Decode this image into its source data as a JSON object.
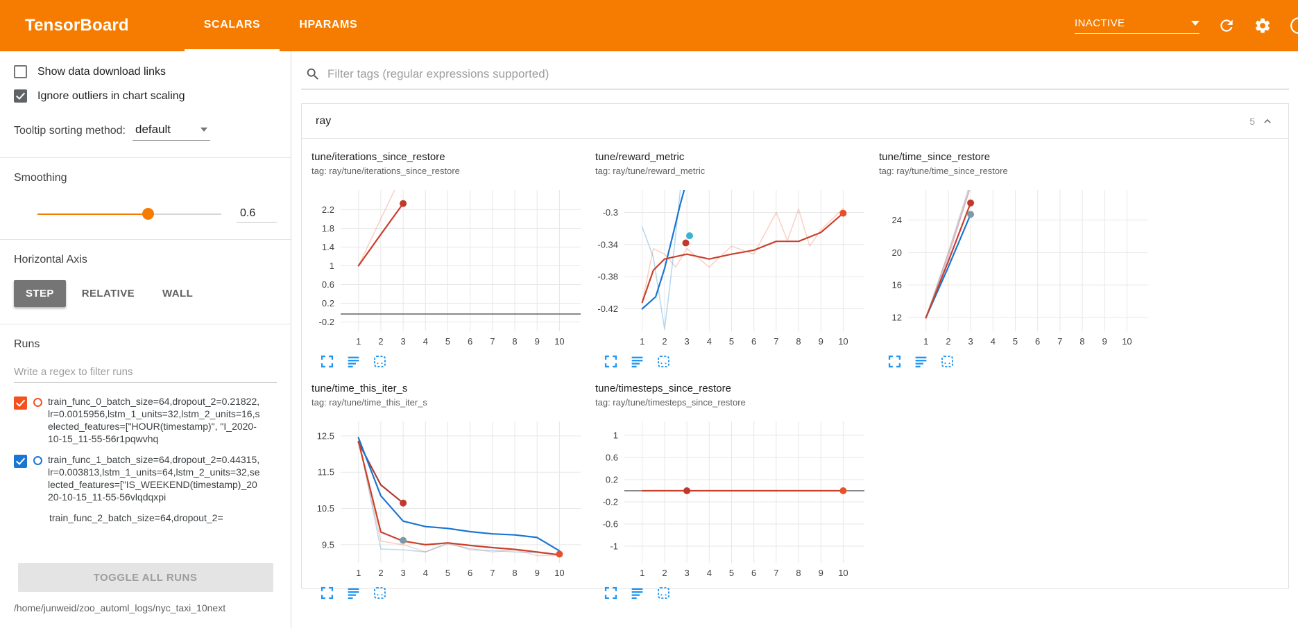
{
  "header": {
    "title": "TensorBoard",
    "tabs": [
      {
        "label": "SCALARS",
        "active": true
      },
      {
        "label": "HPARAMS",
        "active": false
      }
    ],
    "status_dropdown": {
      "value": "INACTIVE"
    }
  },
  "sidebar": {
    "settings": [
      {
        "label": "Show data download links",
        "checked": false
      },
      {
        "label": "Ignore outliers in chart scaling",
        "checked": true
      }
    ],
    "tooltip_sorting": {
      "label": "Tooltip sorting method:",
      "value": "default"
    },
    "smoothing": {
      "label": "Smoothing",
      "value": "0.6",
      "percent": 60
    },
    "horizontal_axis": {
      "label": "Horizontal Axis",
      "options": [
        {
          "label": "STEP",
          "selected": true
        },
        {
          "label": "RELATIVE",
          "selected": false
        },
        {
          "label": "WALL",
          "selected": false
        }
      ]
    },
    "runs": {
      "label": "Runs",
      "filter_placeholder": "Write a regex to filter runs",
      "items": [
        {
          "label": "train_func_0_batch_size=64,dropout_2=0.21822,lr=0.0015956,lstm_1_units=32,lstm_2_units=16,selected_features=[\"HOUR(timestamp)\", \"I_2020-10-15_11-55-56r1pqwvhq",
          "checked": true,
          "color": "#f4511e"
        },
        {
          "label": "train_func_1_batch_size=64,dropout_2=0.44315,lr=0.003813,lstm_1_units=64,lstm_2_units=32,selected_features=[\"IS_WEEKEND(timestamp)_2020-10-15_11-55-56vlqdqxpi",
          "checked": true,
          "color": "#1976d2"
        },
        {
          "label": "train_func_2_batch_size=64,dropout_2=",
          "checked": null,
          "color": null
        }
      ],
      "toggle_all_label": "TOGGLE ALL RUNS",
      "log_path": "/home/junweid/zoo_automl_logs/nyc_taxi_10next"
    }
  },
  "main": {
    "filter_placeholder": "Filter tags (regular expressions supported)",
    "section": {
      "name": "ray",
      "count": "5"
    },
    "chart_data": [
      {
        "type": "line",
        "title": "tune/iterations_since_restore",
        "tag": "tag: ray/tune/iterations_since_restore",
        "xlim": [
          0.2,
          10.95
        ],
        "ylim": [
          -0.4,
          2.62
        ],
        "xticks": [
          1,
          2,
          3,
          4,
          5,
          6,
          7,
          8,
          9,
          10
        ],
        "yticks": [
          -0.2,
          0.2,
          0.6,
          1,
          1.4,
          1.8,
          2.2
        ],
        "series": [
          {
            "name": "train_func_0_raw",
            "color": "#e8502c",
            "opacity": 0.25,
            "width": 1.6,
            "points": [
              [
                1,
                1
              ],
              [
                2,
                2
              ],
              [
                3,
                3
              ]
            ]
          },
          {
            "name": "train_func_0",
            "color": "#c9402c",
            "opacity": 1,
            "width": 2.2,
            "points": [
              [
                1,
                1
              ],
              [
                2,
                1.67
              ],
              [
                3,
                2.33
              ]
            ]
          },
          {
            "name": "constant_run",
            "color": "#5f6368",
            "opacity": 1,
            "width": 1.6,
            "points": [
              [
                0.2,
                -0.03
              ],
              [
                10.95,
                -0.03
              ]
            ]
          }
        ],
        "dots": [
          {
            "x": 3,
            "y": 2.33,
            "color": "#c0392b"
          }
        ]
      },
      {
        "type": "line",
        "title": "tune/reward_metric",
        "tag": "tag: ray/tune/reward_metric",
        "xlim": [
          0.2,
          10.95
        ],
        "ylim": [
          -0.448,
          -0.272
        ],
        "xticks": [
          1,
          2,
          3,
          4,
          5,
          6,
          7,
          8,
          9,
          10
        ],
        "yticks": [
          -0.42,
          -0.38,
          -0.34,
          -0.3
        ],
        "series": [
          {
            "name": "train_func_1_raw",
            "color": "#90c5e8",
            "opacity": 0.65,
            "width": 1.6,
            "points": [
              [
                1,
                -0.318
              ],
              [
                1.5,
                -0.356
              ],
              [
                2,
                -0.445
              ],
              [
                2.2,
                -0.4
              ],
              [
                2.45,
                -0.34
              ],
              [
                2.75,
                -0.26
              ]
            ]
          },
          {
            "name": "train_func_0_raw",
            "color": "#e8502c",
            "opacity": 0.25,
            "width": 1.6,
            "points": [
              [
                1,
                -0.412
              ],
              [
                1.5,
                -0.345
              ],
              [
                2,
                -0.352
              ],
              [
                2.5,
                -0.368
              ],
              [
                3,
                -0.345
              ],
              [
                4,
                -0.368
              ],
              [
                5,
                -0.342
              ],
              [
                6,
                -0.352
              ],
              [
                7,
                -0.3
              ],
              [
                7.5,
                -0.335
              ],
              [
                8,
                -0.296
              ],
              [
                8.5,
                -0.342
              ],
              [
                9,
                -0.322
              ],
              [
                10,
                -0.295
              ]
            ]
          },
          {
            "name": "train_func_1",
            "color": "#1976d2",
            "opacity": 1,
            "width": 2.2,
            "points": [
              [
                1,
                -0.42
              ],
              [
                1.6,
                -0.405
              ],
              [
                2,
                -0.37
              ],
              [
                2.4,
                -0.325
              ],
              [
                2.7,
                -0.29
              ],
              [
                3,
                -0.26
              ]
            ]
          },
          {
            "name": "train_func_0",
            "color": "#c9402c",
            "opacity": 1,
            "width": 2.2,
            "points": [
              [
                1,
                -0.412
              ],
              [
                1.5,
                -0.372
              ],
              [
                2,
                -0.358
              ],
              [
                3,
                -0.352
              ],
              [
                4,
                -0.358
              ],
              [
                5,
                -0.352
              ],
              [
                6,
                -0.347
              ],
              [
                7,
                -0.336
              ],
              [
                8,
                -0.336
              ],
              [
                9,
                -0.325
              ],
              [
                10,
                -0.301
              ]
            ]
          }
        ],
        "dots": [
          {
            "x": 2.95,
            "y": -0.338,
            "color": "#c0392b"
          },
          {
            "x": 3.12,
            "y": -0.329,
            "color": "#3bb3d0"
          },
          {
            "x": 10,
            "y": -0.301,
            "color": "#e8502c"
          }
        ]
      },
      {
        "type": "line",
        "title": "tune/time_since_restore",
        "tag": "tag: ray/tune/time_since_restore",
        "xlim": [
          0.2,
          10.95
        ],
        "ylim": [
          10.3,
          27.7
        ],
        "xticks": [
          1,
          2,
          3,
          4,
          5,
          6,
          7,
          8,
          9,
          10
        ],
        "yticks": [
          12,
          16,
          20,
          24
        ],
        "series": [
          {
            "name": "raw_a",
            "color": "#9aa7b0",
            "opacity": 0.55,
            "width": 1.6,
            "points": [
              [
                1,
                12
              ],
              [
                2,
                20
              ],
              [
                3,
                28.6
              ]
            ]
          },
          {
            "name": "raw_b",
            "color": "#b39ddb",
            "opacity": 0.5,
            "width": 1.6,
            "points": [
              [
                1,
                11.9
              ],
              [
                2,
                19.4
              ],
              [
                3,
                28.2
              ]
            ]
          },
          {
            "name": "raw_c",
            "color": "#e8502c",
            "opacity": 0.25,
            "width": 1.6,
            "points": [
              [
                1,
                11.8
              ],
              [
                2,
                19.8
              ],
              [
                3,
                28
              ]
            ]
          },
          {
            "name": "train_func_1",
            "color": "#1976d2",
            "opacity": 1,
            "width": 2.2,
            "points": [
              [
                1,
                12
              ],
              [
                2,
                18.2
              ],
              [
                3,
                24.7
              ]
            ]
          },
          {
            "name": "train_func_0",
            "color": "#c9402c",
            "opacity": 1,
            "width": 2.2,
            "points": [
              [
                1,
                12
              ],
              [
                2,
                18.9
              ],
              [
                3,
                26.1
              ]
            ]
          }
        ],
        "dots": [
          {
            "x": 3,
            "y": 26.1,
            "color": "#c0392b"
          },
          {
            "x": 3,
            "y": 24.7,
            "color": "#7d9aa8"
          }
        ]
      },
      {
        "type": "line",
        "title": "tune/time_this_iter_s",
        "tag": "tag: ray/tune/time_this_iter_s",
        "xlim": [
          0.2,
          10.95
        ],
        "ylim": [
          9.0,
          12.9
        ],
        "xticks": [
          1,
          2,
          3,
          4,
          5,
          6,
          7,
          8,
          9,
          10
        ],
        "yticks": [
          9.5,
          10.5,
          11.5,
          12.5
        ],
        "series": [
          {
            "name": "train_func_1_raw",
            "color": "#90c5e8",
            "opacity": 0.6,
            "width": 1.6,
            "points": [
              [
                1,
                12.45
              ],
              [
                2,
                9.38
              ],
              [
                3,
                9.36
              ],
              [
                4,
                9.3
              ],
              [
                5,
                9.55
              ],
              [
                6,
                9.36
              ],
              [
                7,
                9.34
              ],
              [
                8,
                9.3
              ],
              [
                9,
                9.28
              ],
              [
                10,
                9.22
              ]
            ]
          },
          {
            "name": "train_func_0_raw",
            "color": "#e8502c",
            "opacity": 0.25,
            "width": 1.6,
            "points": [
              [
                1,
                12.35
              ],
              [
                2,
                9.6
              ],
              [
                3,
                9.5
              ],
              [
                4,
                9.3
              ],
              [
                5,
                9.52
              ],
              [
                6,
                9.4
              ],
              [
                7,
                9.3
              ],
              [
                8,
                9.36
              ],
              [
                9,
                9.2
              ],
              [
                10,
                9.2
              ]
            ]
          },
          {
            "name": "train_func_2",
            "color": "#b03a2e",
            "opacity": 1,
            "width": 2.2,
            "points": [
              [
                1,
                12.32
              ],
              [
                2,
                11.15
              ],
              [
                3,
                10.65
              ]
            ]
          },
          {
            "name": "train_func_1",
            "color": "#1976d2",
            "opacity": 1,
            "width": 2.2,
            "points": [
              [
                1,
                12.45
              ],
              [
                2,
                10.85
              ],
              [
                3,
                10.15
              ],
              [
                4,
                10.0
              ],
              [
                5,
                9.95
              ],
              [
                6,
                9.86
              ],
              [
                7,
                9.8
              ],
              [
                8,
                9.77
              ],
              [
                9,
                9.7
              ],
              [
                10,
                9.33
              ]
            ]
          },
          {
            "name": "train_func_0",
            "color": "#c9402c",
            "opacity": 1,
            "width": 2.2,
            "points": [
              [
                1,
                12.35
              ],
              [
                2,
                9.85
              ],
              [
                3,
                9.6
              ],
              [
                4,
                9.5
              ],
              [
                5,
                9.55
              ],
              [
                6,
                9.48
              ],
              [
                7,
                9.42
              ],
              [
                8,
                9.37
              ],
              [
                9,
                9.3
              ],
              [
                10,
                9.22
              ]
            ]
          }
        ],
        "dots": [
          {
            "x": 3,
            "y": 10.65,
            "color": "#c0392b"
          },
          {
            "x": 3,
            "y": 9.62,
            "color": "#7d9aa8"
          },
          {
            "x": 10,
            "y": 9.24,
            "color": "#e8502c"
          }
        ]
      },
      {
        "type": "line",
        "title": "tune/timesteps_since_restore",
        "tag": "tag: ray/tune/timesteps_since_restore",
        "xlim": [
          0.2,
          10.95
        ],
        "ylim": [
          -1.3,
          1.25
        ],
        "xticks": [
          1,
          2,
          3,
          4,
          5,
          6,
          7,
          8,
          9,
          10
        ],
        "yticks": [
          -1,
          -0.6,
          -0.2,
          0.2,
          0.6,
          1
        ],
        "series": [
          {
            "name": "constant_gray",
            "color": "#5f6368",
            "opacity": 1,
            "width": 1.6,
            "points": [
              [
                0.2,
                0
              ],
              [
                10.95,
                0
              ]
            ]
          },
          {
            "name": "train_func_0",
            "color": "#c9402c",
            "opacity": 1,
            "width": 2.2,
            "points": [
              [
                1,
                0
              ],
              [
                10,
                0
              ]
            ]
          }
        ],
        "dots": [
          {
            "x": 3,
            "y": 0,
            "color": "#c0392b"
          },
          {
            "x": 10,
            "y": 0,
            "color": "#e8502c"
          }
        ]
      }
    ]
  }
}
